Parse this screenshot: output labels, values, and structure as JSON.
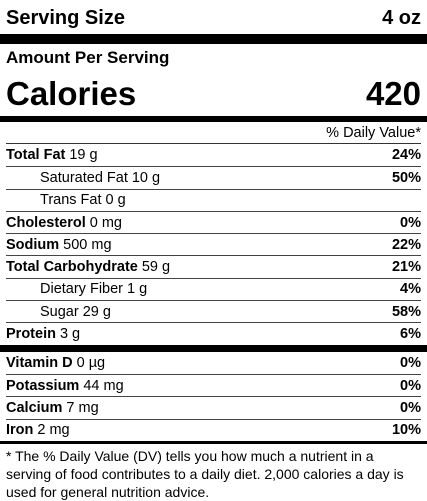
{
  "serving": {
    "label": "Serving Size",
    "value": "4 oz"
  },
  "amount_per_serving": "Amount Per Serving",
  "calories": {
    "label": "Calories",
    "value": "420"
  },
  "daily_value_header": "% Daily Value*",
  "nutrients": [
    {
      "name": "Total Fat",
      "amount": "19 g",
      "dv": "24%",
      "sub": [
        {
          "name": "Saturated Fat",
          "amount": "10 g",
          "dv": "50%"
        },
        {
          "name": "Trans Fat",
          "amount": "0 g"
        }
      ]
    },
    {
      "name": "Cholesterol",
      "amount": "0 mg",
      "dv": "0%"
    },
    {
      "name": "Sodium",
      "amount": "500 mg",
      "dv": "22%"
    },
    {
      "name": "Total Carbohydrate",
      "amount": "59 g",
      "dv": "21%",
      "sub": [
        {
          "name": "Dietary Fiber",
          "amount": "1 g",
          "dv": "4%"
        },
        {
          "name": "Sugar",
          "amount": "29 g",
          "dv": "58%"
        }
      ]
    },
    {
      "name": "Protein",
      "amount": "3 g",
      "dv": "6%"
    }
  ],
  "vitamins": [
    {
      "name": "Vitamin D",
      "amount": "0 µg",
      "dv": "0%"
    },
    {
      "name": "Potassium",
      "amount": "44 mg",
      "dv": "0%"
    },
    {
      "name": "Calcium",
      "amount": "7 mg",
      "dv": "0%"
    },
    {
      "name": "Iron",
      "amount": "2 mg",
      "dv": "10%"
    }
  ],
  "footnote": "* The % Daily Value (DV) tells you how much a nutrient in a serving of food contributes to a daily diet. 2,000 calories a day is used for general nutrition advice."
}
